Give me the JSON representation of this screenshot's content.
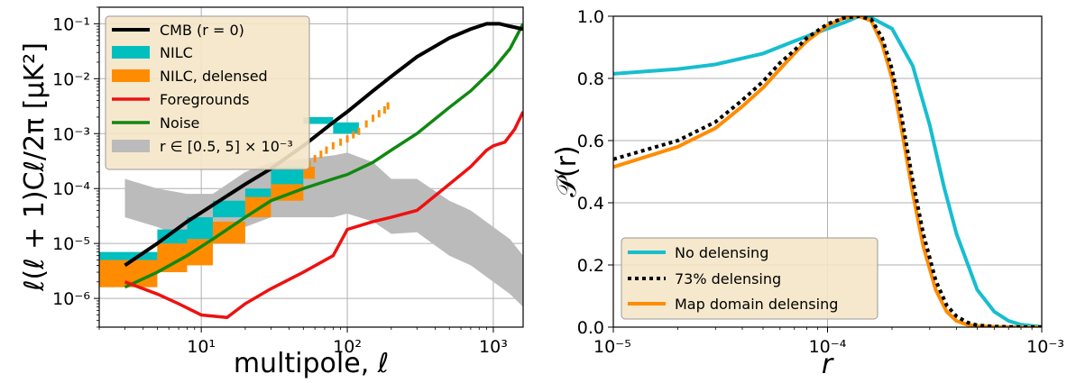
{
  "chart_data": [
    {
      "type": "line",
      "xlabel": "multipole, ℓ",
      "ylabel": "ℓ(ℓ + 1)Cℓ/2π [μK²]",
      "xscale": "log",
      "yscale": "log",
      "xlim": [
        2,
        1600
      ],
      "ylim": [
        3e-07,
        0.2
      ],
      "grid": true,
      "legend_position": "top-left",
      "x_ticks": [
        {
          "value": 10,
          "label": "10¹"
        },
        {
          "value": 100,
          "label": "10²"
        },
        {
          "value": 1000,
          "label": "10³"
        }
      ],
      "y_ticks": [
        {
          "value": 1e-06,
          "label": "10⁻⁶"
        },
        {
          "value": 1e-05,
          "label": "10⁻⁵"
        },
        {
          "value": 0.0001,
          "label": "10⁻⁴"
        },
        {
          "value": 0.001,
          "label": "10⁻³"
        },
        {
          "value": 0.01,
          "label": "10⁻²"
        },
        {
          "value": 0.1,
          "label": "10⁻¹"
        }
      ],
      "legend": [
        {
          "label": "CMB (r = 0)",
          "color": "#000000",
          "kind": "line"
        },
        {
          "label": "NILC",
          "color": "#00bfbf",
          "kind": "patch"
        },
        {
          "label": "NILC, delensed",
          "color": "#ff8c00",
          "kind": "patch"
        },
        {
          "label": "Foregrounds",
          "color": "#ee1111",
          "kind": "line"
        },
        {
          "label": "Noise",
          "color": "#118811",
          "kind": "line"
        },
        {
          "label": "r ∈ [0.5, 5] × 10⁻³",
          "color": "#bbbbbb",
          "kind": "patch"
        }
      ],
      "series": [
        {
          "name": "CMB (r = 0)",
          "color": "#000000",
          "x": [
            3,
            5,
            8,
            12,
            20,
            30,
            50,
            80,
            100,
            150,
            200,
            300,
            500,
            700,
            900,
            1100,
            1300,
            1600
          ],
          "y": [
            4e-06,
            1e-05,
            2.5e-05,
            5e-05,
            0.00012,
            0.00023,
            0.0006,
            0.0016,
            0.0025,
            0.006,
            0.011,
            0.025,
            0.055,
            0.08,
            0.1,
            0.1,
            0.09,
            0.08
          ]
        },
        {
          "name": "Foregrounds",
          "color": "#ee1111",
          "x": [
            3,
            5,
            7,
            10,
            15,
            20,
            30,
            50,
            80,
            100,
            150,
            200,
            300,
            500,
            700,
            900,
            1000,
            1200,
            1400,
            1600
          ],
          "y": [
            2e-06,
            1.2e-06,
            8e-07,
            5e-07,
            4.5e-07,
            8e-07,
            1.5e-06,
            3e-06,
            6e-06,
            1.8e-05,
            2.5e-05,
            3e-05,
            4e-05,
            0.00012,
            0.00025,
            0.0005,
            0.0006,
            0.0007,
            0.0012,
            0.0025
          ]
        },
        {
          "name": "Noise",
          "color": "#118811",
          "x": [
            3,
            5,
            8,
            12,
            20,
            30,
            50,
            80,
            100,
            150,
            200,
            300,
            500,
            700,
            1000,
            1300,
            1600
          ],
          "y": [
            1.6e-06,
            3e-06,
            6e-06,
            1.2e-05,
            3e-05,
            6e-05,
            0.0001,
            0.00015,
            0.00018,
            0.0003,
            0.0005,
            0.001,
            0.003,
            0.006,
            0.015,
            0.035,
            0.1
          ]
        }
      ],
      "nilc_bins": [
        {
          "x": [
            2,
            5
          ],
          "y": [
            2.5e-06,
            7e-06
          ]
        },
        {
          "x": [
            5,
            8
          ],
          "y": [
            6e-06,
            1.8e-05
          ]
        },
        {
          "x": [
            8,
            12
          ],
          "y": [
            1.2e-05,
            3e-05
          ]
        },
        {
          "x": [
            12,
            20
          ],
          "y": [
            3e-05,
            6e-05
          ]
        },
        {
          "x": [
            20,
            30
          ],
          "y": [
            5e-05,
            0.0001
          ]
        },
        {
          "x": [
            30,
            50
          ],
          "y": [
            0.0001,
            0.00025
          ]
        },
        {
          "x": [
            50,
            80
          ],
          "y": [
            0.0015,
            0.002
          ]
        },
        {
          "x": [
            80,
            120
          ],
          "y": [
            0.001,
            0.0016
          ]
        }
      ],
      "nilc_delensed_bins": [
        {
          "x": [
            2,
            5
          ],
          "y": [
            1.6e-06,
            5e-06
          ]
        },
        {
          "x": [
            5,
            8
          ],
          "y": [
            3e-06,
            1e-05
          ]
        },
        {
          "x": [
            8,
            12
          ],
          "y": [
            4e-06,
            1.2e-05
          ]
        },
        {
          "x": [
            12,
            20
          ],
          "y": [
            1e-05,
            2.5e-05
          ]
        },
        {
          "x": [
            20,
            30
          ],
          "y": [
            3e-05,
            7e-05
          ]
        },
        {
          "x": [
            30,
            50
          ],
          "y": [
            6e-05,
            0.00012
          ]
        },
        {
          "x": [
            50,
            60
          ],
          "y": [
            0.00015,
            0.00025
          ]
        }
      ],
      "delensed_points": {
        "x": [
          55,
          60,
          66,
          72,
          80,
          90,
          100,
          110,
          120,
          135,
          150,
          165,
          180,
          190
        ],
        "y": [
          0.00028,
          0.00035,
          0.00042,
          0.0005,
          0.0006,
          0.0007,
          0.0008,
          0.00095,
          0.0011,
          0.0015,
          0.0019,
          0.0023,
          0.0027,
          0.0032
        ]
      },
      "r_band": {
        "x": [
          3,
          5,
          8,
          12,
          20,
          30,
          50,
          80,
          100,
          150,
          200,
          300,
          500,
          700,
          1000,
          1300,
          1600
        ],
        "low": [
          3e-05,
          2e-05,
          1.2e-05,
          1e-05,
          2e-05,
          3e-05,
          3e-05,
          3e-05,
          3.5e-05,
          2.5e-05,
          1.5e-05,
          1.6e-05,
          6e-06,
          4e-06,
          2e-06,
          1.2e-06,
          7e-07
        ],
        "high": [
          0.00015,
          0.0001,
          8e-05,
          8e-05,
          0.0002,
          0.0003,
          0.00035,
          0.0004,
          0.00045,
          0.0003,
          0.00015,
          0.00015,
          6e-05,
          4e-05,
          2e-05,
          1.2e-05,
          6e-06
        ]
      }
    },
    {
      "type": "line",
      "xlabel": "r",
      "ylabel": "𝒫(r)",
      "xscale": "log",
      "xlim": [
        1e-05,
        0.001
      ],
      "ylim": [
        0,
        1
      ],
      "grid": true,
      "legend_position": "bottom-left",
      "x_ticks": [
        {
          "value": 1e-05,
          "label": "10⁻⁵"
        },
        {
          "value": 0.0001,
          "label": "10⁻⁴"
        },
        {
          "value": 0.001,
          "label": "10⁻³"
        }
      ],
      "y_ticks": [
        {
          "value": 0,
          "label": "0.0"
        },
        {
          "value": 0.2,
          "label": "0.2"
        },
        {
          "value": 0.4,
          "label": "0.4"
        },
        {
          "value": 0.6,
          "label": "0.6"
        },
        {
          "value": 0.8,
          "label": "0.8"
        },
        {
          "value": 1,
          "label": "1.0"
        }
      ],
      "series": [
        {
          "name": "No delensing",
          "color": "#17becf",
          "dash": "solid",
          "x": [
            1e-05,
            2e-05,
            3e-05,
            5e-05,
            7e-05,
            0.0001,
            0.00012,
            0.00014,
            0.00016,
            0.0002,
            0.00025,
            0.0003,
            0.00035,
            0.0004,
            0.0005,
            0.0006,
            0.0007,
            0.0008,
            0.001
          ],
          "y": [
            0.815,
            0.83,
            0.845,
            0.88,
            0.92,
            0.96,
            0.98,
            1.0,
            0.995,
            0.96,
            0.84,
            0.65,
            0.45,
            0.3,
            0.12,
            0.05,
            0.02,
            0.008,
            0.001
          ]
        },
        {
          "name": "73% delensing",
          "color": "#000000",
          "dash": "dotted",
          "x": [
            1e-05,
            2e-05,
            3e-05,
            4e-05,
            5e-05,
            6e-05,
            7e-05,
            8e-05,
            0.0001,
            0.00012,
            0.00014,
            0.00016,
            0.00018,
            0.0002,
            0.00022,
            0.00025,
            0.00028,
            0.00032,
            0.00036,
            0.0004,
            0.00045,
            0.0005,
            0.0006,
            0.0008,
            0.001
          ],
          "y": [
            0.54,
            0.6,
            0.66,
            0.73,
            0.79,
            0.85,
            0.89,
            0.93,
            0.975,
            0.995,
            1.0,
            0.99,
            0.93,
            0.83,
            0.69,
            0.47,
            0.3,
            0.15,
            0.07,
            0.035,
            0.015,
            0.006,
            0.002,
            0.0,
            0.0
          ]
        },
        {
          "name": "Map domain delensing",
          "color": "#ff8c00",
          "dash": "solid",
          "x": [
            1e-05,
            2e-05,
            3e-05,
            4e-05,
            5e-05,
            6e-05,
            7e-05,
            8e-05,
            0.0001,
            0.00012,
            0.00014,
            0.00016,
            0.00018,
            0.0002,
            0.00022,
            0.00025,
            0.00028,
            0.00032,
            0.00036,
            0.0004,
            0.00045,
            0.0005,
            0.0006,
            0.0008,
            0.001
          ],
          "y": [
            0.515,
            0.58,
            0.64,
            0.71,
            0.77,
            0.83,
            0.88,
            0.92,
            0.97,
            0.995,
            1.0,
            0.985,
            0.91,
            0.8,
            0.65,
            0.43,
            0.26,
            0.12,
            0.05,
            0.02,
            0.008,
            0.003,
            0.001,
            0.0,
            0.0
          ]
        }
      ]
    }
  ]
}
